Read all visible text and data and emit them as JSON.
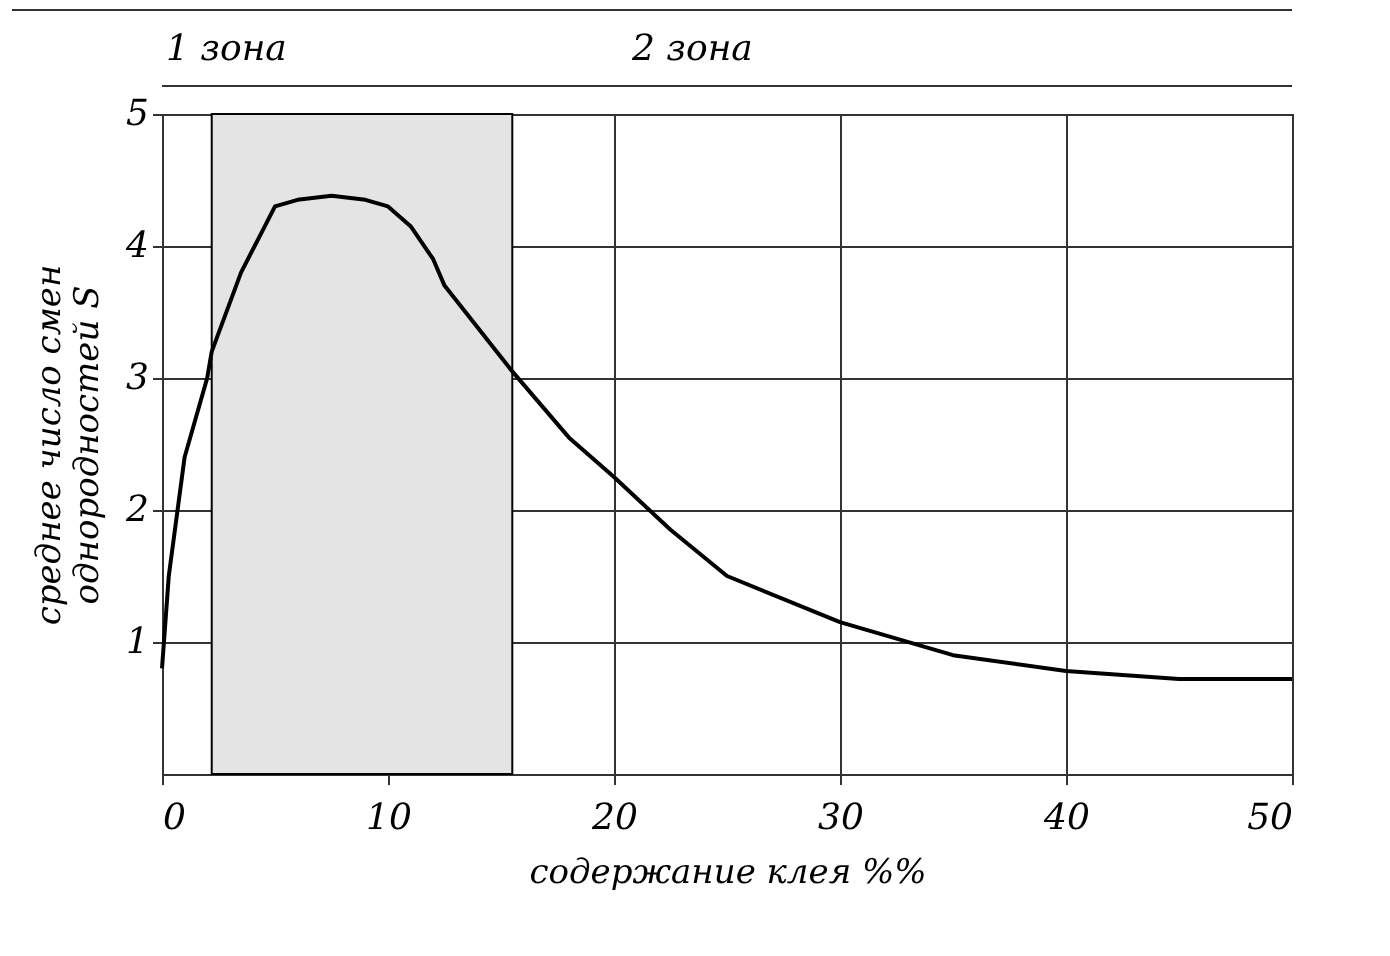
{
  "chart_data": {
    "type": "line",
    "xlabel": "содержание клея %%",
    "ylabel": "среднее число смен\nоднородностей S",
    "annotations": [
      "1 зона",
      "2 зона"
    ],
    "x": [
      0,
      0.3,
      1,
      2,
      2.2,
      3.5,
      5,
      6,
      7.5,
      9,
      10,
      11,
      12,
      12.5,
      15.5,
      18,
      20,
      22.5,
      25,
      30,
      35,
      40,
      45,
      50
    ],
    "series": [
      {
        "color": "#000000",
        "values": [
          0.8,
          1.5,
          2.4,
          3.0,
          3.2,
          3.8,
          4.3,
          4.35,
          4.38,
          4.35,
          4.3,
          4.15,
          3.9,
          3.7,
          3.05,
          2.55,
          2.25,
          1.85,
          1.5,
          1.15,
          0.9,
          0.78,
          0.72,
          0.72
        ]
      }
    ],
    "bands": [
      {
        "axis": "x",
        "from": 2.2,
        "to": 15.5,
        "color": "#e4e4e4"
      }
    ],
    "xlim": [
      0,
      50
    ],
    "xticks": [
      0,
      10,
      20,
      30,
      40,
      50
    ],
    "ylim": [
      0,
      5
    ],
    "yticks": [
      1,
      2,
      3,
      4,
      5
    ],
    "grid": true,
    "marker": "none",
    "line_style": "solid"
  }
}
